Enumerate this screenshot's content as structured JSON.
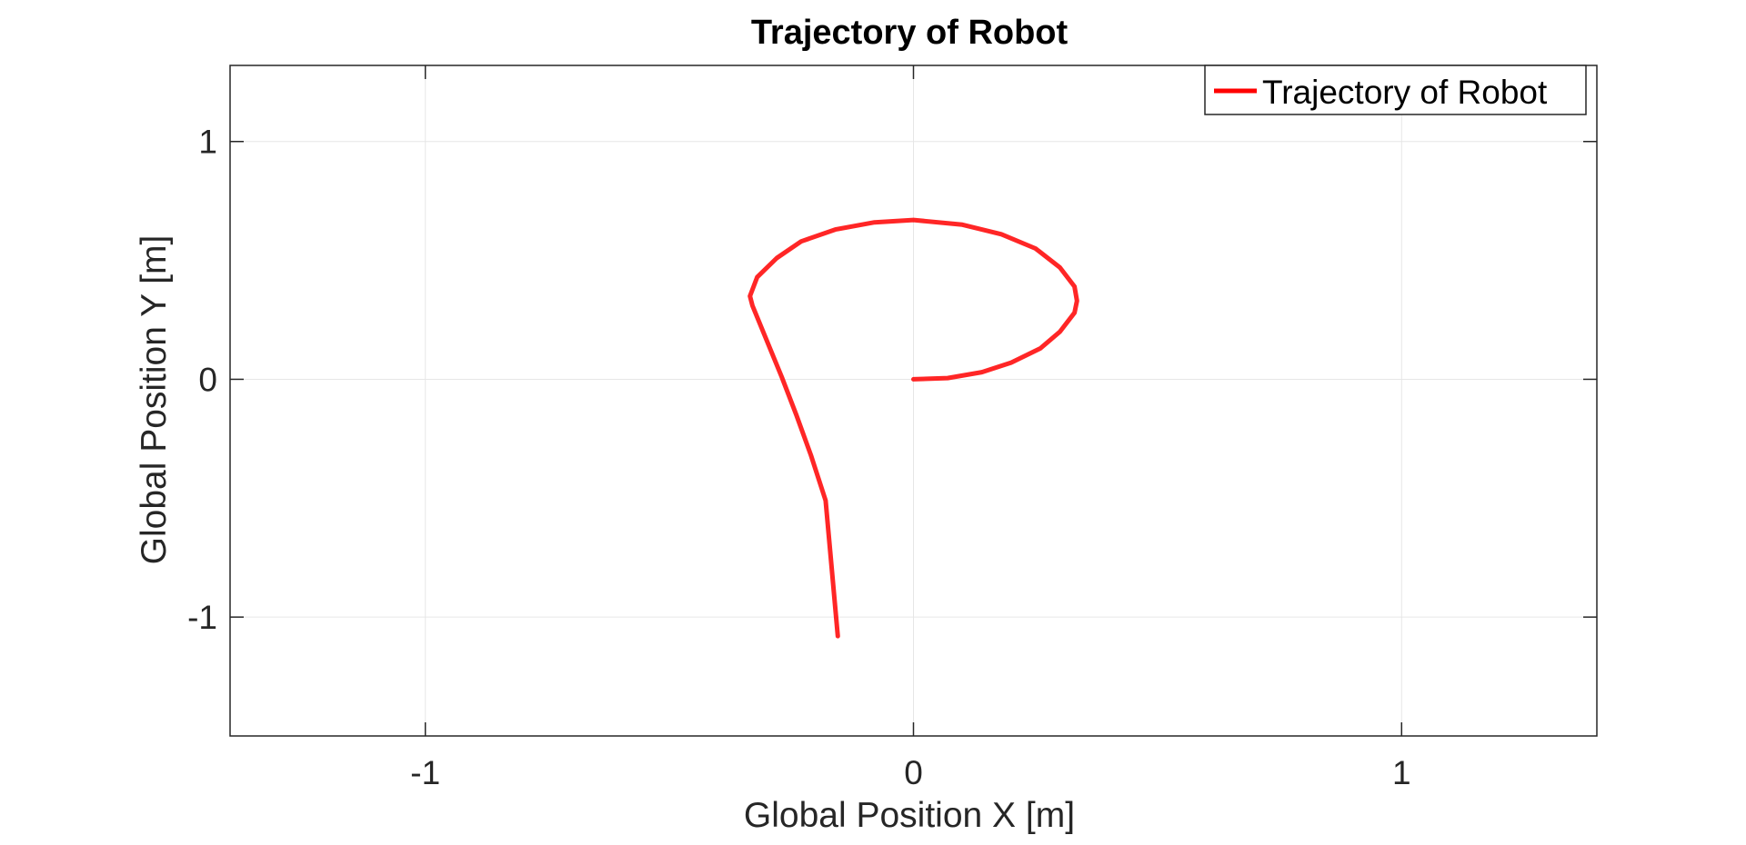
{
  "chart_data": {
    "type": "line",
    "title": "Trajectory of Robot",
    "xlabel": "Global Position X [m]",
    "ylabel": "Global Position Y [m]",
    "xlim": [
      -1.4,
      1.4
    ],
    "ylim": [
      -1.5,
      1.32
    ],
    "xticks": [
      -1,
      0,
      1
    ],
    "yticks": [
      -1,
      0,
      1
    ],
    "xtick_labels": [
      "-1",
      "0",
      "1"
    ],
    "ytick_labels": [
      "-1",
      "0",
      "1"
    ],
    "grid": true,
    "legend_position": "top-right",
    "series": [
      {
        "name": "Trajectory of Robot",
        "color": "#ff0000",
        "x": [
          0.0,
          0.07,
          0.14,
          0.2,
          0.26,
          0.3,
          0.33,
          0.335,
          0.33,
          0.3,
          0.25,
          0.18,
          0.1,
          0.0,
          -0.08,
          -0.16,
          -0.23,
          -0.28,
          -0.32,
          -0.335,
          -0.33,
          -0.3,
          -0.27,
          -0.24,
          -0.21,
          -0.18,
          -0.155
        ],
        "y": [
          0.0,
          0.005,
          0.03,
          0.07,
          0.13,
          0.2,
          0.28,
          0.33,
          0.39,
          0.47,
          0.55,
          0.61,
          0.65,
          0.67,
          0.66,
          0.63,
          0.58,
          0.51,
          0.43,
          0.35,
          0.31,
          0.16,
          0.01,
          -0.15,
          -0.32,
          -0.51,
          -1.08
        ]
      }
    ]
  }
}
